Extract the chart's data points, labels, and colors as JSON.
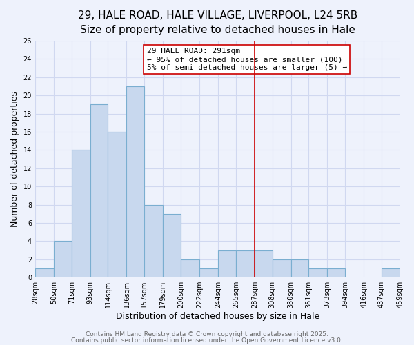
{
  "title_line1": "29, HALE ROAD, HALE VILLAGE, LIVERPOOL, L24 5RB",
  "title_line2": "Size of property relative to detached houses in Hale",
  "xlabel": "Distribution of detached houses by size in Hale",
  "ylabel": "Number of detached properties",
  "bar_edges": [
    28,
    50,
    71,
    93,
    114,
    136,
    157,
    179,
    200,
    222,
    244,
    265,
    287,
    308,
    330,
    351,
    373,
    394,
    416,
    437,
    459
  ],
  "bar_heights": [
    1,
    4,
    14,
    19,
    16,
    21,
    8,
    7,
    2,
    1,
    3,
    3,
    3,
    2,
    2,
    1,
    1,
    0,
    0,
    1
  ],
  "bar_color": "#c8d8ee",
  "bar_edgecolor": "#7aaed0",
  "tick_labels": [
    "28sqm",
    "50sqm",
    "71sqm",
    "93sqm",
    "114sqm",
    "136sqm",
    "157sqm",
    "179sqm",
    "200sqm",
    "222sqm",
    "244sqm",
    "265sqm",
    "287sqm",
    "308sqm",
    "330sqm",
    "351sqm",
    "373sqm",
    "394sqm",
    "416sqm",
    "437sqm",
    "459sqm"
  ],
  "vline_x": 287,
  "vline_color": "#cc0000",
  "annotation_title": "29 HALE ROAD: 291sqm",
  "annotation_line1": "← 95% of detached houses are smaller (100)",
  "annotation_line2": "5% of semi-detached houses are larger (5) →",
  "ylim": [
    0,
    26
  ],
  "yticks": [
    0,
    2,
    4,
    6,
    8,
    10,
    12,
    14,
    16,
    18,
    20,
    22,
    24,
    26
  ],
  "background_color": "#eef2fc",
  "grid_color": "#d0d8f0",
  "footer_line1": "Contains HM Land Registry data © Crown copyright and database right 2025.",
  "footer_line2": "Contains public sector information licensed under the Open Government Licence v3.0.",
  "title_fontsize": 11,
  "subtitle_fontsize": 9.5,
  "axis_label_fontsize": 9,
  "tick_fontsize": 7,
  "annotation_fontsize": 8,
  "footer_fontsize": 6.5
}
